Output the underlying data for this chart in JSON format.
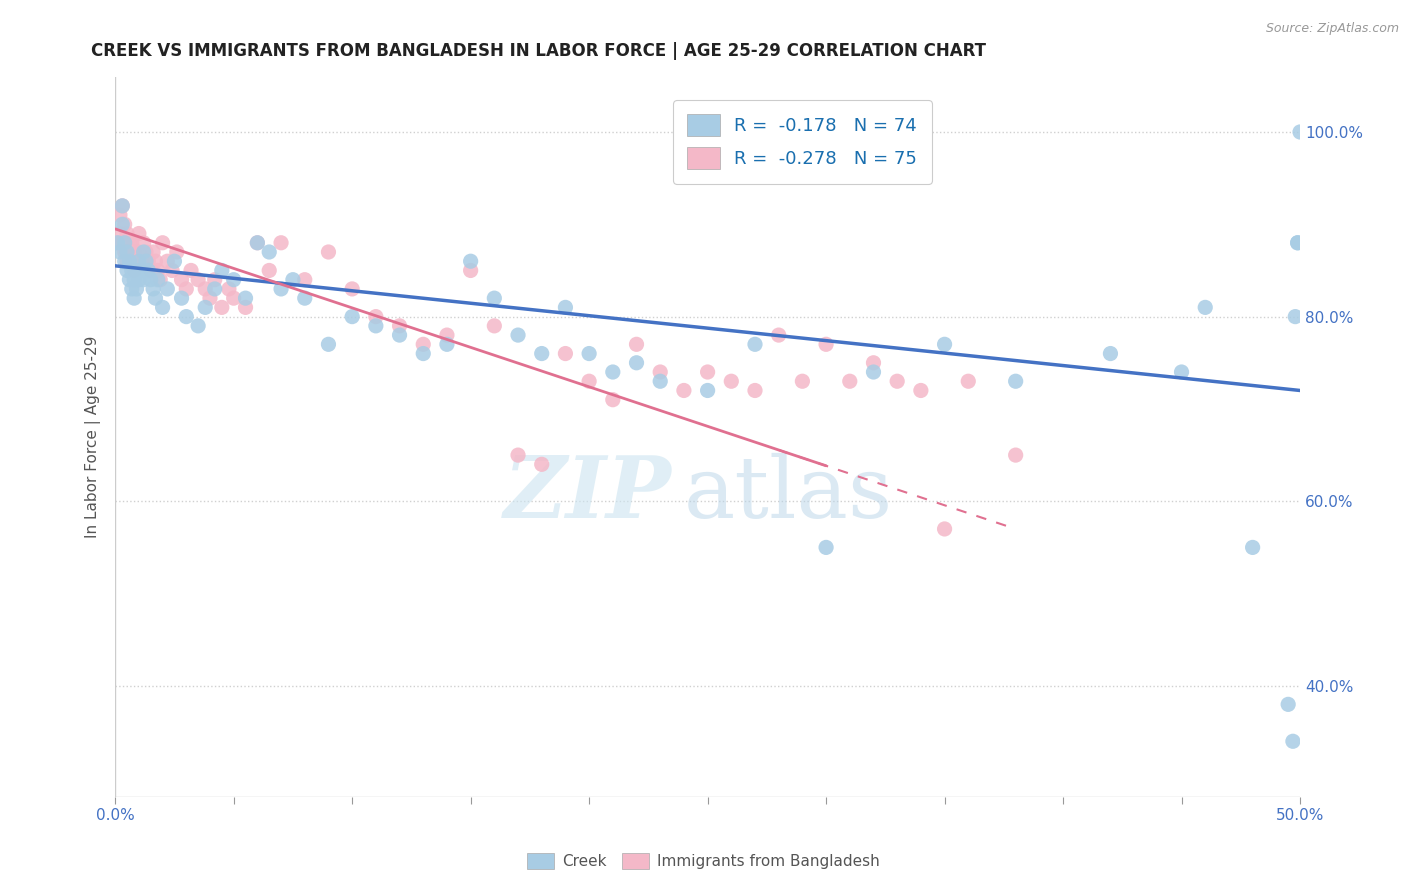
{
  "title": "CREEK VS IMMIGRANTS FROM BANGLADESH IN LABOR FORCE | AGE 25-29 CORRELATION CHART",
  "source": "Source: ZipAtlas.com",
  "ylabel": "In Labor Force | Age 25-29",
  "x_min": 0.0,
  "x_max": 0.5,
  "y_min": 0.28,
  "y_max": 1.06,
  "x_ticks": [
    0.0,
    0.1,
    0.2,
    0.3,
    0.4,
    0.5
  ],
  "x_tick_labels": [
    "0.0%",
    "",
    "",
    "",
    "",
    "50.0%"
  ],
  "y_ticks": [
    0.4,
    0.6,
    0.8,
    1.0
  ],
  "y_tick_labels": [
    "40.0%",
    "60.0%",
    "80.0%",
    "100.0%"
  ],
  "creek_color": "#a8cce4",
  "bangladesh_color": "#f4b8c8",
  "creek_line_color": "#4472c4",
  "bangladesh_line_color": "#e07090",
  "creek_R": -0.178,
  "creek_N": 74,
  "bangladesh_R": -0.278,
  "bangladesh_N": 75,
  "legend_label_creek": "Creek",
  "legend_label_bangladesh": "Immigrants from Bangladesh",
  "watermark_zip": "ZIP",
  "watermark_atlas": "atlas",
  "background_color": "#ffffff",
  "grid_color": "#d0d0d0",
  "title_color": "#222222",
  "axis_tick_color": "#4472c4",
  "ylabel_color": "#555555",
  "creek_x": [
    0.001,
    0.002,
    0.003,
    0.003,
    0.004,
    0.004,
    0.005,
    0.005,
    0.006,
    0.006,
    0.007,
    0.007,
    0.008,
    0.008,
    0.009,
    0.009,
    0.01,
    0.01,
    0.011,
    0.012,
    0.012,
    0.013,
    0.014,
    0.015,
    0.016,
    0.017,
    0.018,
    0.02,
    0.022,
    0.025,
    0.028,
    0.03,
    0.035,
    0.038,
    0.042,
    0.045,
    0.05,
    0.055,
    0.06,
    0.065,
    0.07,
    0.075,
    0.08,
    0.09,
    0.1,
    0.11,
    0.12,
    0.13,
    0.14,
    0.15,
    0.16,
    0.17,
    0.18,
    0.19,
    0.2,
    0.21,
    0.22,
    0.23,
    0.25,
    0.27,
    0.3,
    0.32,
    0.35,
    0.38,
    0.42,
    0.45,
    0.46,
    0.48,
    0.495,
    0.497,
    0.498,
    0.499,
    0.499,
    0.5
  ],
  "creek_y": [
    0.88,
    0.87,
    0.92,
    0.9,
    0.86,
    0.88,
    0.85,
    0.87,
    0.84,
    0.86,
    0.83,
    0.85,
    0.82,
    0.84,
    0.83,
    0.85,
    0.84,
    0.86,
    0.85,
    0.87,
    0.84,
    0.86,
    0.85,
    0.84,
    0.83,
    0.82,
    0.84,
    0.81,
    0.83,
    0.86,
    0.82,
    0.8,
    0.79,
    0.81,
    0.83,
    0.85,
    0.84,
    0.82,
    0.88,
    0.87,
    0.83,
    0.84,
    0.82,
    0.77,
    0.8,
    0.79,
    0.78,
    0.76,
    0.77,
    0.86,
    0.82,
    0.78,
    0.76,
    0.81,
    0.76,
    0.74,
    0.75,
    0.73,
    0.72,
    0.77,
    0.55,
    0.74,
    0.77,
    0.73,
    0.76,
    0.74,
    0.81,
    0.55,
    0.38,
    0.34,
    0.8,
    0.88,
    0.88,
    1.0
  ],
  "bangladesh_x": [
    0.001,
    0.002,
    0.002,
    0.003,
    0.003,
    0.004,
    0.004,
    0.005,
    0.005,
    0.006,
    0.006,
    0.007,
    0.007,
    0.008,
    0.008,
    0.009,
    0.01,
    0.01,
    0.011,
    0.012,
    0.013,
    0.014,
    0.015,
    0.016,
    0.017,
    0.018,
    0.019,
    0.02,
    0.022,
    0.024,
    0.026,
    0.028,
    0.03,
    0.032,
    0.035,
    0.038,
    0.04,
    0.042,
    0.045,
    0.048,
    0.05,
    0.055,
    0.06,
    0.065,
    0.07,
    0.08,
    0.09,
    0.1,
    0.11,
    0.12,
    0.13,
    0.14,
    0.15,
    0.16,
    0.17,
    0.18,
    0.19,
    0.2,
    0.21,
    0.22,
    0.23,
    0.24,
    0.25,
    0.26,
    0.27,
    0.28,
    0.29,
    0.3,
    0.31,
    0.32,
    0.33,
    0.34,
    0.35,
    0.36,
    0.38
  ],
  "bangladesh_y": [
    0.88,
    0.91,
    0.89,
    0.92,
    0.88,
    0.9,
    0.87,
    0.89,
    0.86,
    0.88,
    0.87,
    0.86,
    0.88,
    0.85,
    0.87,
    0.86,
    0.89,
    0.87,
    0.86,
    0.88,
    0.87,
    0.86,
    0.85,
    0.87,
    0.86,
    0.85,
    0.84,
    0.88,
    0.86,
    0.85,
    0.87,
    0.84,
    0.83,
    0.85,
    0.84,
    0.83,
    0.82,
    0.84,
    0.81,
    0.83,
    0.82,
    0.81,
    0.88,
    0.85,
    0.88,
    0.84,
    0.87,
    0.83,
    0.8,
    0.79,
    0.77,
    0.78,
    0.85,
    0.79,
    0.65,
    0.64,
    0.76,
    0.73,
    0.71,
    0.77,
    0.74,
    0.72,
    0.74,
    0.73,
    0.72,
    0.78,
    0.73,
    0.77,
    0.73,
    0.75,
    0.73,
    0.72,
    0.57,
    0.73,
    0.65
  ],
  "creek_line_x": [
    0.0,
    0.5
  ],
  "creek_line_y": [
    0.855,
    0.72
  ],
  "bangladesh_line_x": [
    0.0,
    0.38
  ],
  "bangladesh_line_y": [
    0.895,
    0.57
  ]
}
